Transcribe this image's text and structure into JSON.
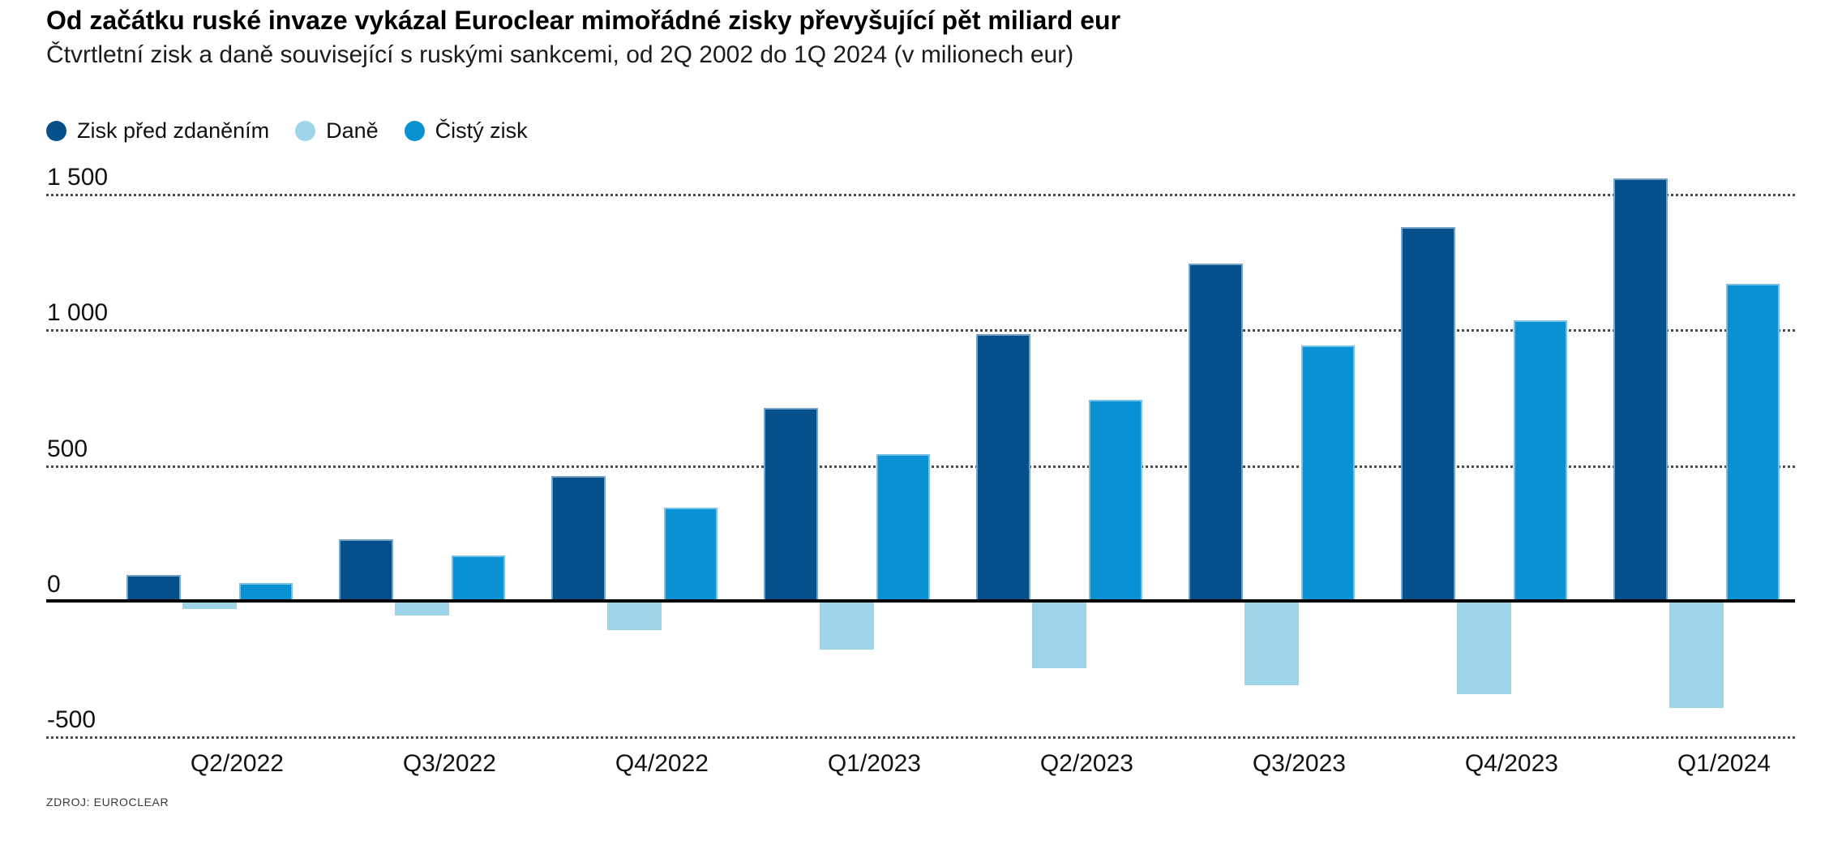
{
  "header": {
    "title": "Od začátku ruské invaze vykázal Euroclear mimořádné zisky převyšující pět miliard eur",
    "subtitle": "Čtvrtletní zisk a daně související s ruskými sankcemi, od 2Q 2002 do 1Q 2024 (v milionech eur)"
  },
  "source": "ZDROJ: EUROCLEAR",
  "colors": {
    "pretax": "#05508a",
    "tax": "#9dd4e9",
    "net": "#0991d3",
    "axis": "#000000",
    "grid": "#4a4a4a",
    "text": "#111111"
  },
  "chart_data": {
    "type": "bar",
    "title": "Od začátku ruské invaze vykázal Euroclear mimořádné zisky převyšující pět miliard eur",
    "subtitle": "Čtvrtletní zisk a daně související s ruskými sankcemi, od 2Q 2002 do 1Q 2024 (v milionech eur)",
    "unit": "miliony eur",
    "categories": [
      "Q2/2022",
      "Q3/2022",
      "Q4/2022",
      "Q1/2023",
      "Q2/2023",
      "Q3/2023",
      "Q4/2023",
      "Q1/2024"
    ],
    "series": [
      {
        "name": "Zisk před zdaněním",
        "color": "#05508a",
        "values": [
          96,
          226,
          461,
          712,
          983,
          1242,
          1377,
          1558
        ]
      },
      {
        "name": "Daně",
        "color": "#9dd4e9",
        "values": [
          -30,
          -55,
          -108,
          -179,
          -248,
          -310,
          -344,
          -395
        ]
      },
      {
        "name": "Čistý zisk",
        "color": "#0991d3",
        "values": [
          67,
          167,
          344,
          540,
          742,
          941,
          1035,
          1170
        ]
      }
    ],
    "ylim": [
      -500,
      1500
    ],
    "yticks": [
      {
        "value": 1500,
        "label": "1 500"
      },
      {
        "value": 1000,
        "label": "1 000"
      },
      {
        "value": 500,
        "label": "500"
      },
      {
        "value": 0,
        "label": "0"
      },
      {
        "value": -500,
        "label": "-500"
      }
    ],
    "grid": "horizontal-dotted",
    "legend_position": "top-left",
    "xlabel": "",
    "ylabel": ""
  }
}
